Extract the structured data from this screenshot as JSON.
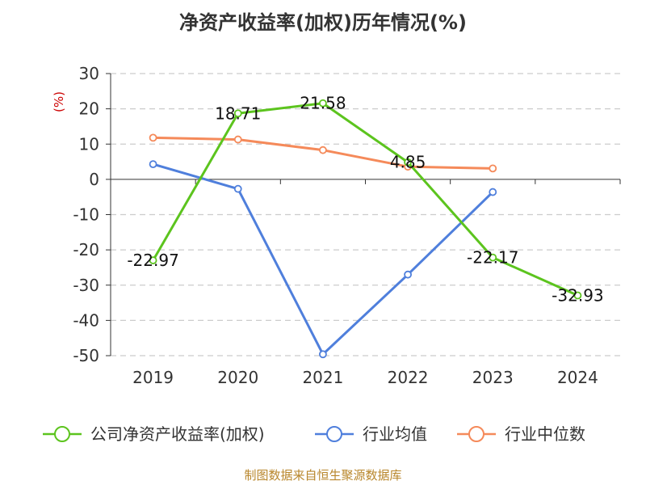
{
  "chart_data": {
    "type": "line",
    "title": "净资产收益率(加权)历年情况(%)",
    "ylabel": "(%)",
    "xlabel": "",
    "categories": [
      "2019",
      "2020",
      "2021",
      "2022",
      "2023",
      "2024"
    ],
    "ylim": [
      -50,
      30
    ],
    "yticks": [
      30,
      20,
      10,
      0,
      -10,
      -20,
      -30,
      -40,
      -50
    ],
    "grid": true,
    "legend_position": "bottom",
    "series": [
      {
        "name": "公司净资产收益率(加权)",
        "color": "#5cc41e",
        "values": [
          -22.97,
          18.71,
          21.58,
          4.85,
          -22.17,
          -32.93
        ],
        "labels": [
          "-22.97",
          "18.71",
          "21.58",
          "4.85",
          "-22.17",
          "-32.93"
        ]
      },
      {
        "name": "行业均值",
        "color": "#4f7fdc",
        "values": [
          4.3,
          -2.7,
          -49.6,
          -27.0,
          -3.6,
          null
        ]
      },
      {
        "name": "行业中位数",
        "color": "#f58a5a",
        "values": [
          11.8,
          11.3,
          8.3,
          3.6,
          3.1,
          null
        ]
      }
    ],
    "source": "制图数据来自恒生聚源数据库"
  }
}
